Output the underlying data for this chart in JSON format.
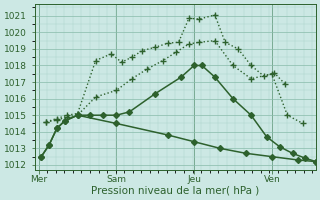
{
  "background_color": "#cce8e4",
  "line_color": "#2d612d",
  "grid_major_color": "#88bbaa",
  "grid_minor_color": "#aad4c8",
  "ylabel_text": "Pression niveau de la mer( hPa )",
  "day_labels": [
    "Mer",
    "Sam",
    "Jeu",
    "Ven"
  ],
  "day_positions": [
    0,
    3,
    6,
    9
  ],
  "ylim": [
    1011.7,
    1021.7
  ],
  "yticks": [
    1012,
    1013,
    1014,
    1015,
    1016,
    1017,
    1018,
    1019,
    1020,
    1021
  ],
  "xlim": [
    -0.15,
    10.7
  ],
  "vlines_x": [
    0,
    3,
    6,
    9
  ],
  "fontsize_tick": 6.5,
  "fontsize_label": 7.5,
  "series": [
    {
      "name": "s1_dotted_plus",
      "linestyle": ":",
      "marker": "+",
      "markersize": 5,
      "lw": 1.0,
      "x": [
        0.3,
        0.7,
        1.1,
        1.5,
        2.2,
        2.8,
        3.2,
        3.6,
        4.0,
        4.5,
        5.0,
        5.4,
        5.8,
        6.2,
        6.8,
        7.2,
        7.7,
        8.2,
        8.7,
        9.1,
        9.5
      ],
      "y": [
        1014.6,
        1014.8,
        1015.0,
        1015.1,
        1018.3,
        1018.7,
        1018.2,
        1018.5,
        1018.9,
        1019.1,
        1019.35,
        1019.4,
        1020.85,
        1020.8,
        1021.05,
        1019.4,
        1019.0,
        1018.0,
        1017.35,
        1017.55,
        1016.9
      ]
    },
    {
      "name": "s2_dotted_plus",
      "linestyle": ":",
      "marker": "+",
      "markersize": 5,
      "lw": 1.0,
      "x": [
        0.3,
        0.7,
        1.1,
        1.5,
        2.2,
        3.0,
        3.6,
        4.2,
        4.8,
        5.3,
        5.8,
        6.2,
        6.8,
        7.5,
        8.2,
        9.0,
        9.6,
        10.2
      ],
      "y": [
        1014.6,
        1014.7,
        1014.9,
        1015.0,
        1016.1,
        1016.5,
        1017.2,
        1017.8,
        1018.3,
        1018.8,
        1019.3,
        1019.4,
        1019.5,
        1018.0,
        1017.2,
        1017.5,
        1015.0,
        1014.5
      ]
    },
    {
      "name": "s3_solid_diamond",
      "linestyle": "-",
      "marker": "D",
      "markersize": 3,
      "lw": 1.1,
      "x": [
        0.1,
        0.4,
        0.7,
        1.0,
        1.5,
        2.0,
        2.5,
        3.0,
        3.5,
        4.5,
        5.5,
        6.0,
        6.3,
        6.8,
        7.5,
        8.2,
        8.8,
        9.3,
        9.8,
        10.3,
        10.7
      ],
      "y": [
        1012.5,
        1013.2,
        1014.2,
        1014.65,
        1015.0,
        1015.0,
        1015.0,
        1015.0,
        1015.2,
        1016.3,
        1017.3,
        1018.0,
        1018.0,
        1017.3,
        1016.0,
        1015.0,
        1013.7,
        1013.1,
        1012.7,
        1012.4,
        1012.2
      ]
    },
    {
      "name": "s4_solid_declining",
      "linestyle": "-",
      "marker": "D",
      "markersize": 3,
      "lw": 1.1,
      "x": [
        0.1,
        0.4,
        0.7,
        1.0,
        1.5,
        3.0,
        5.0,
        6.0,
        7.0,
        8.0,
        9.0,
        10.0,
        10.7
      ],
      "y": [
        1012.5,
        1013.2,
        1014.2,
        1014.65,
        1015.0,
        1014.5,
        1013.8,
        1013.4,
        1013.0,
        1012.7,
        1012.5,
        1012.3,
        1012.2
      ]
    }
  ]
}
